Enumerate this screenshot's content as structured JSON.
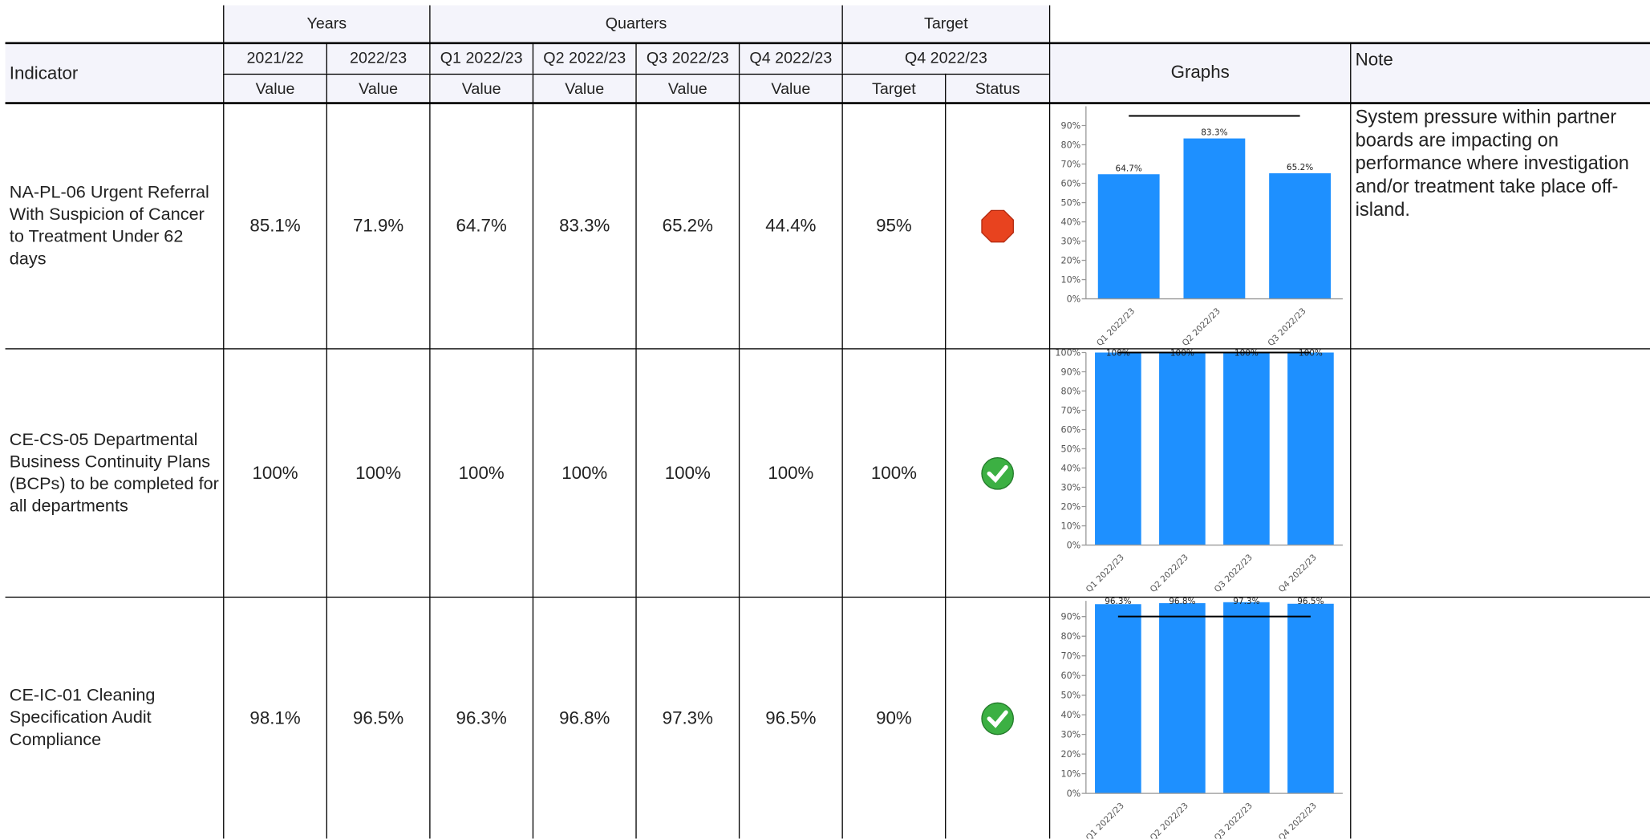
{
  "header": {
    "groups": [
      "Years",
      "Quarters",
      "Target"
    ],
    "indicator": "Indicator",
    "graphs": "Graphs",
    "note": "Note",
    "periods": [
      "2021/22",
      "2022/23",
      "Q1 2022/23",
      "Q2 2022/23",
      "Q3 2022/23",
      "Q4 2022/23",
      "Q4 2022/23"
    ],
    "subheaders": [
      "Value",
      "Value",
      "Value",
      "Value",
      "Value",
      "Value",
      "Target",
      "Status"
    ]
  },
  "rows": [
    {
      "indicator": "NA-PL-06 Urgent Referral With Suspicion of Cancer to Treatment Under 62 days",
      "values": [
        "85.1%",
        "71.9%",
        "64.7%",
        "83.3%",
        "65.2%",
        "44.4%"
      ],
      "target": "95%",
      "status": "red",
      "note": "System pressure within partner boards are impacting on performance where investigation and/or treatment take place off-island.",
      "chart": {
        "type": "bar",
        "categories": [
          "Q1 2022/23",
          "Q2 2022/23",
          "Q3 2022/23"
        ],
        "values": [
          64.7,
          83.3,
          65.2
        ],
        "value_labels": [
          "64.7%",
          "83.3%",
          "65.2%"
        ],
        "color": "#1e90ff",
        "target": 95,
        "ylim": [
          0,
          100
        ],
        "yticks": [
          {
            "value": 0,
            "label": "0%"
          },
          {
            "value": 10,
            "label": "10%"
          },
          {
            "value": 20,
            "label": "20%"
          },
          {
            "value": 30,
            "label": "30%"
          },
          {
            "value": 40,
            "label": "40%"
          },
          {
            "value": 50,
            "label": "50%"
          },
          {
            "value": 60,
            "label": "60%"
          },
          {
            "value": 70,
            "label": "70%"
          },
          {
            "value": 80,
            "label": "80%"
          },
          {
            "value": 90,
            "label": "90%"
          }
        ]
      }
    },
    {
      "indicator": "CE-CS-05 Departmental Business Continuity Plans (BCPs) to be completed for all departments",
      "values": [
        "100%",
        "100%",
        "100%",
        "100%",
        "100%",
        "100%"
      ],
      "target": "100%",
      "status": "green",
      "chart": {
        "type": "bar",
        "categories": [
          "Q1 2022/23",
          "Q2 2022/23",
          "Q3 2022/23",
          "Q4 2022/23"
        ],
        "values": [
          100,
          100,
          100,
          100
        ],
        "value_labels": [
          "100%",
          "100%",
          "100%",
          "100%"
        ],
        "color": "#1e90ff",
        "target": 100,
        "ylim": [
          0,
          100
        ],
        "yticks": [
          {
            "value": 0,
            "label": "0%"
          },
          {
            "value": 10,
            "label": "10%"
          },
          {
            "value": 20,
            "label": "20%"
          },
          {
            "value": 30,
            "label": "30%"
          },
          {
            "value": 40,
            "label": "40%"
          },
          {
            "value": 50,
            "label": "50%"
          },
          {
            "value": 60,
            "label": "60%"
          },
          {
            "value": 70,
            "label": "70%"
          },
          {
            "value": 80,
            "label": "80%"
          },
          {
            "value": 90,
            "label": "90%"
          },
          {
            "value": 100,
            "label": "100%"
          }
        ]
      }
    },
    {
      "indicator": "CE-IC-01 Cleaning Specification Audit Compliance",
      "values": [
        "98.1%",
        "96.5%",
        "96.3%",
        "96.8%",
        "97.3%",
        "96.5%"
      ],
      "target": "90%",
      "status": "green",
      "chart": {
        "type": "bar",
        "categories": [
          "Q1 2022/23",
          "Q2 2022/23",
          "Q3 2022/23",
          "Q4 2022/23"
        ],
        "values": [
          96.3,
          96.8,
          97.3,
          96.5
        ],
        "value_labels": [
          "96.3%",
          "96.8%",
          "97.3%",
          "96.5%"
        ],
        "color": "#1e90ff",
        "target": 90,
        "ylim": [
          0,
          98
        ],
        "yticks": [
          {
            "value": 0,
            "label": "0%"
          },
          {
            "value": 10,
            "label": "10%"
          },
          {
            "value": 20,
            "label": "20%"
          },
          {
            "value": 30,
            "label": "30%"
          },
          {
            "value": 40,
            "label": "40%"
          },
          {
            "value": 50,
            "label": "50%"
          },
          {
            "value": 60,
            "label": "60%"
          },
          {
            "value": 70,
            "label": "70%"
          },
          {
            "value": 80,
            "label": "80%"
          },
          {
            "value": 90,
            "label": "90%"
          }
        ]
      }
    }
  ]
}
